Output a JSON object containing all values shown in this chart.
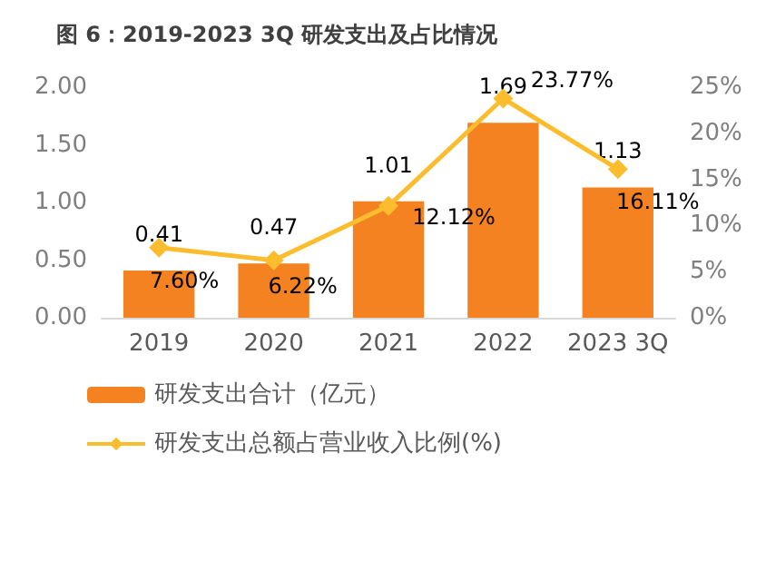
{
  "chart_data": {
    "type": "bar",
    "title": "图 6：2019-2023 3Q 研发支出及占比情况",
    "categories": [
      "2019",
      "2020",
      "2021",
      "2022",
      "2023 3Q"
    ],
    "series": [
      {
        "name": "研发支出合计（亿元）",
        "color": "#f58220",
        "values": [
          0.41,
          0.47,
          1.01,
          1.69,
          1.13
        ],
        "value_labels": [
          "0.41",
          "0.47",
          "1.01",
          "1.69",
          "1.13"
        ]
      },
      {
        "name": "研发支出总额占营业收入比例(%)",
        "type": "line",
        "axis": "y2",
        "color": "#fbbd2e",
        "marker": "diamond",
        "values": [
          7.6,
          6.22,
          12.12,
          23.77,
          16.11
        ],
        "value_labels": [
          "7.60%",
          "6.22%",
          "12.12%",
          "23.77%",
          "16.11%"
        ]
      }
    ],
    "ylim": [
      0,
      2
    ],
    "yticks": [
      {
        "value": 0,
        "label": "0.00"
      },
      {
        "value": 0.5,
        "label": "0.50"
      },
      {
        "value": 1,
        "label": "1.00"
      },
      {
        "value": 1.5,
        "label": "1.50"
      },
      {
        "value": 2,
        "label": "2.00"
      }
    ],
    "y2lim": [
      0,
      25
    ],
    "y2ticks": [
      {
        "value": 0,
        "label": "0%"
      },
      {
        "value": 5,
        "label": "5%"
      },
      {
        "value": 10,
        "label": "10%"
      },
      {
        "value": 15,
        "label": "15%"
      },
      {
        "value": 20,
        "label": "20%"
      },
      {
        "value": 25,
        "label": "25%"
      }
    ],
    "grid": false,
    "legend": "bottom"
  }
}
